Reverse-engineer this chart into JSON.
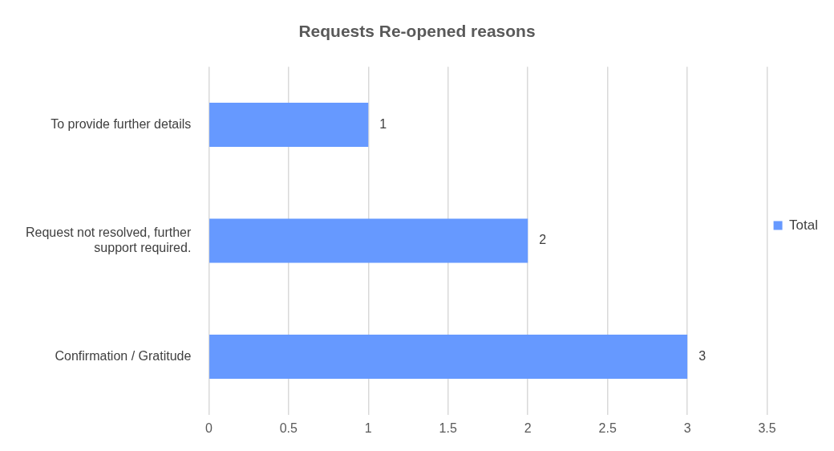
{
  "chart_data": {
    "type": "bar",
    "orientation": "horizontal",
    "title": "Requests Re-opened reasons",
    "categories": [
      "To provide further details",
      "Request not resolved, further support required.",
      "Confirmation / Gratitude"
    ],
    "series": [
      {
        "name": "Total",
        "color": "#6699ff",
        "values": [
          1,
          2,
          3
        ]
      }
    ],
    "xlim": [
      0,
      3.5
    ],
    "xticks": [
      0,
      0.5,
      1,
      1.5,
      2,
      2.5,
      3,
      3.5
    ],
    "grid": "x",
    "legend": "right",
    "data_labels": true
  }
}
